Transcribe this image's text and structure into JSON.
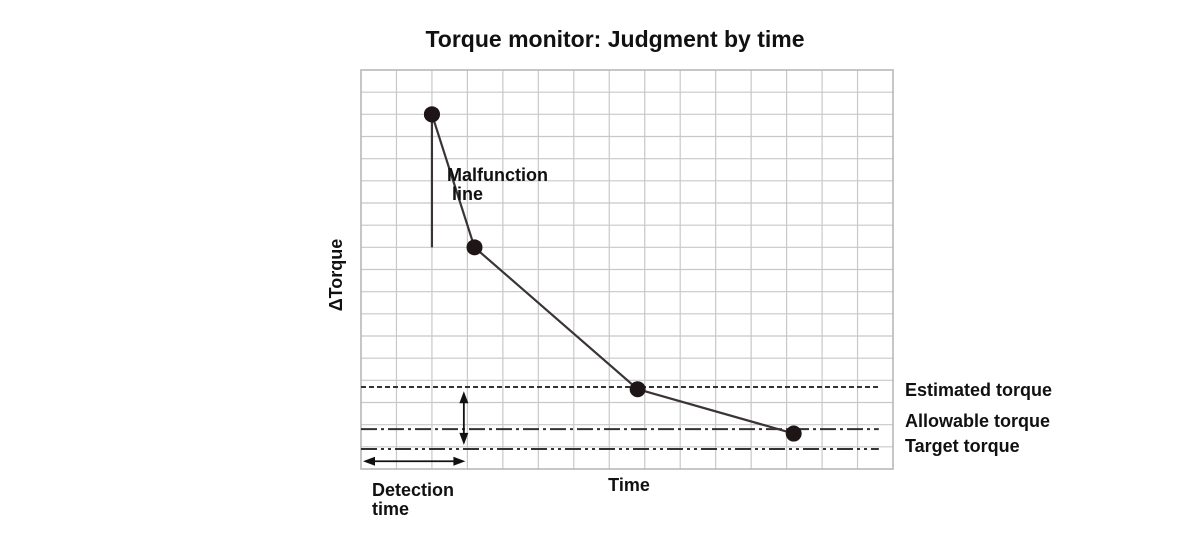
{
  "chart_data": {
    "type": "line",
    "title": "Torque monitor: Judgment by time",
    "xlabel": "Time",
    "ylabel": "ΔTorque",
    "grid": true,
    "xlim": [
      0,
      15
    ],
    "ylim": [
      0,
      18
    ],
    "series": [
      {
        "x": [
          2,
          3.2,
          7.8,
          12.2
        ],
        "y": [
          16,
          10,
          3.6,
          1.6
        ],
        "color": "#3a3436",
        "marker_color": "#1e1517"
      }
    ],
    "annotation_line": {
      "label_line1": "Malfunction",
      "label_line2": "line",
      "x": 2,
      "y_from": 10,
      "y_to": 16
    },
    "reference_lines": [
      {
        "label": "Estimated torque",
        "y": 3.7,
        "style": "dashed",
        "x_to": 14.6
      },
      {
        "label": "Allowable torque",
        "y": 1.8,
        "style": "dash-dot",
        "x_to": 14.6
      },
      {
        "label": "Target torque",
        "y": 0.9,
        "style": "dash-dot-dot",
        "x_to": 14.6
      }
    ],
    "detection_time": {
      "label_line1": "Detection",
      "label_line2": "time",
      "x_from": 0,
      "x_to": 3,
      "y": 0.35
    },
    "torque_gap": {
      "x": 2.9,
      "y_from": 1.0,
      "y_to": 3.6
    },
    "colors": {
      "grid": "#c8c8c8",
      "frame": "#b4b4b4",
      "line": "#3a3436",
      "marker": "#1e1517",
      "text": "#111111"
    }
  }
}
